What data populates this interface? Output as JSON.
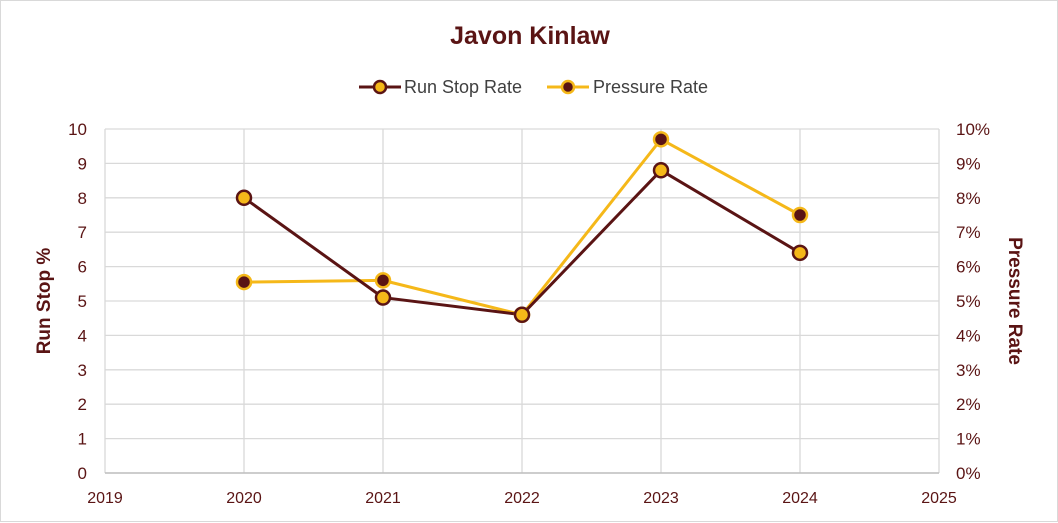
{
  "chart_data": {
    "type": "line",
    "title": "Javon Kinlaw",
    "x": [
      2020,
      2021,
      2022,
      2023,
      2024
    ],
    "xlim": [
      2019,
      2025
    ],
    "xticks": [
      "2019",
      "2020",
      "2021",
      "2022",
      "2023",
      "2024",
      "2025"
    ],
    "ylabel_left": "Run Stop %",
    "ylabel_right": "Pressure Rate",
    "ylim_left": [
      0,
      10
    ],
    "yticks_left": [
      "0",
      "1",
      "2",
      "3",
      "4",
      "5",
      "6",
      "7",
      "8",
      "9",
      "10"
    ],
    "ylim_right": [
      0,
      10
    ],
    "yticks_right": [
      "0%",
      "1%",
      "2%",
      "3%",
      "4%",
      "5%",
      "6%",
      "7%",
      "8%",
      "9%",
      "10%"
    ],
    "grid": true,
    "legend_position": "top",
    "series": [
      {
        "name": "Run Stop Rate",
        "axis": "left",
        "values": [
          8.0,
          5.1,
          4.6,
          8.8,
          6.4
        ],
        "line_color": "#5a1414",
        "marker_fill": "#f5b819",
        "marker_edge": "#5a1414"
      },
      {
        "name": "Pressure Rate",
        "axis": "right",
        "values": [
          5.55,
          5.6,
          4.6,
          9.7,
          7.5
        ],
        "line_color": "#f5b819",
        "marker_fill": "#5a1414",
        "marker_edge": "#f5b819"
      }
    ],
    "colors": {
      "maroon": "#5a1414",
      "gold": "#f5b819",
      "grid": "#d9d9d9",
      "legend_text": "#404040"
    }
  }
}
